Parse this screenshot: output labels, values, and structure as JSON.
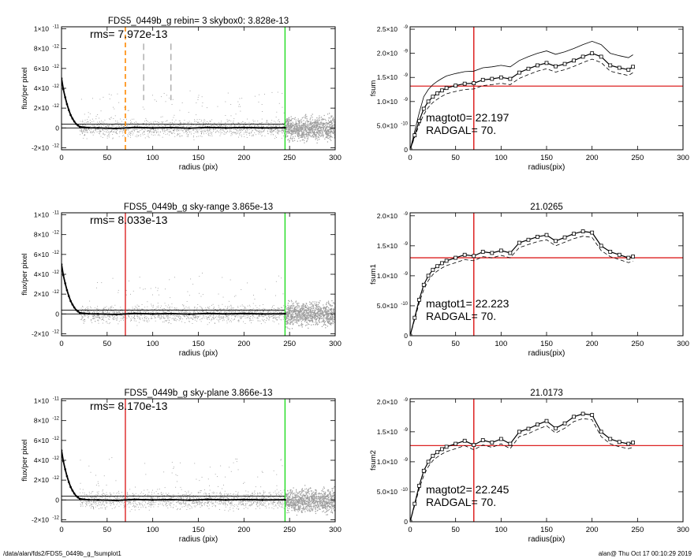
{
  "footer": {
    "path": "/data/alan/fds2/FDS5_0449b_g_fsumplot1",
    "stamp": "alan@  Thu Oct 17 00:10:29 2019"
  },
  "colors": {
    "ref_red": "#dd2222",
    "ref_green": "#22dd22",
    "ref_orange": "#ff8800",
    "noise_gray": "#9a9a9a"
  },
  "chart_data": [
    {
      "type": "scatter",
      "title": "FDS5_0449b_g rebin= 3    skybox0:  3.828e-13",
      "annotation": "rms= 7.972e-13",
      "xlabel": "radius (pix)",
      "ylabel": "flux/per pixel",
      "xlim": [
        0,
        300
      ],
      "ylim": [
        -2.2e-12,
        1.02e-11
      ],
      "xticks": [
        0,
        50,
        100,
        150,
        200,
        250,
        300
      ],
      "yticks": [
        -2e-12,
        0,
        2e-12,
        4e-12,
        6e-12,
        8e-12,
        1e-11
      ],
      "ytick_labels": [
        [
          "-2×10",
          "-12"
        ],
        [
          "0",
          ""
        ],
        [
          "2×10",
          "-12"
        ],
        [
          "4×10",
          "-12"
        ],
        [
          "6×10",
          "-12"
        ],
        [
          "8×10",
          "-12"
        ],
        [
          "1×10",
          "-11"
        ]
      ],
      "profile_x": [
        0,
        2,
        4,
        6,
        8,
        10,
        12,
        14,
        16,
        18,
        20,
        25,
        30,
        40,
        60,
        80,
        100,
        120,
        140,
        160,
        180,
        200,
        220,
        245
      ],
      "profile_y": [
        5e-12,
        3.9e-12,
        3.1e-12,
        2.4e-12,
        1.8e-12,
        1.3e-12,
        9.5e-13,
        6.5e-13,
        4e-13,
        2.5e-13,
        1.2e-13,
        5e-14,
        2e-14,
        0.0,
        -5e-14,
        5e-14,
        0.0,
        3e-14,
        -2e-14,
        5e-14,
        0.0,
        4e-14,
        0.0,
        2e-14
      ],
      "hlines": [
        3.8e-13,
        0
      ],
      "vlines": [
        {
          "x": 70,
          "color": "#ff8800",
          "dash": "6,4"
        },
        {
          "x": 245,
          "color": "#22dd22",
          "dash": ""
        },
        {
          "x": 90,
          "color": "#888888",
          "dash": "8,5"
        },
        {
          "x": 120,
          "color": "#888888",
          "dash": "8,5"
        }
      ],
      "seed": 11
    },
    {
      "type": "line",
      "title": "",
      "annotation_lines": [
        "magtot0=  22.197",
        " RADGAL=     70."
      ],
      "xlabel": "radius(pix)",
      "ylabel": "fsum",
      "xlim": [
        0,
        300
      ],
      "ylim": [
        0,
        2.55e-09
      ],
      "xticks": [
        0,
        50,
        100,
        150,
        200,
        250,
        300
      ],
      "yticks": [
        0,
        5e-10,
        1e-09,
        1.5e-09,
        2e-09,
        2.5e-09
      ],
      "ytick_labels": [
        [
          "0",
          ""
        ],
        [
          "5.0×10",
          "-10"
        ],
        [
          "1.0×10",
          "-9"
        ],
        [
          "1.5×10",
          "-9"
        ],
        [
          "2.0×10",
          "-9"
        ],
        [
          "2.5×10",
          "-9"
        ]
      ],
      "x": [
        0,
        5,
        10,
        15,
        20,
        25,
        30,
        35,
        40,
        50,
        60,
        70,
        80,
        90,
        100,
        110,
        120,
        130,
        140,
        150,
        160,
        170,
        180,
        190,
        200,
        210,
        220,
        230,
        240,
        245
      ],
      "y": [
        0,
        3e-10,
        6e-10,
        8.5e-10,
        1e-09,
        1.1e-09,
        1.17e-09,
        1.23e-09,
        1.28e-09,
        1.33e-09,
        1.37e-09,
        1.38e-09,
        1.45e-09,
        1.47e-09,
        1.5e-09,
        1.47e-09,
        1.6e-09,
        1.68e-09,
        1.75e-09,
        1.8e-09,
        1.73e-09,
        1.78e-09,
        1.85e-09,
        1.93e-09,
        2e-09,
        1.93e-09,
        1.75e-09,
        1.7e-09,
        1.66e-09,
        1.72e-09
      ],
      "upper_offset": 2.5e-10,
      "lower_offset": 1.2e-10,
      "hline": 1.32e-09,
      "vline": 70
    },
    {
      "type": "scatter",
      "title": "FDS5_0449b_g sky-range  3.865e-13",
      "annotation": "rms= 8.033e-13",
      "xlabel": "radius (pix)",
      "ylabel": "flux/per pixel",
      "xlim": [
        0,
        300
      ],
      "ylim": [
        -2.2e-12,
        1.02e-11
      ],
      "xticks": [
        0,
        50,
        100,
        150,
        200,
        250,
        300
      ],
      "yticks": [
        -2e-12,
        0,
        2e-12,
        4e-12,
        6e-12,
        8e-12,
        1e-11
      ],
      "ytick_labels": [
        [
          "-2×10",
          "-12"
        ],
        [
          "0",
          ""
        ],
        [
          "2×10",
          "-12"
        ],
        [
          "4×10",
          "-12"
        ],
        [
          "6×10",
          "-12"
        ],
        [
          "8×10",
          "-12"
        ],
        [
          "1×10",
          "-11"
        ]
      ],
      "profile_x": [
        0,
        2,
        4,
        6,
        8,
        10,
        12,
        14,
        16,
        18,
        20,
        25,
        30,
        40,
        60,
        80,
        100,
        120,
        140,
        160,
        180,
        200,
        220,
        245
      ],
      "profile_y": [
        5e-12,
        3.9e-12,
        3.1e-12,
        2.4e-12,
        1.8e-12,
        1.3e-12,
        9.5e-13,
        6.5e-13,
        4e-13,
        2.5e-13,
        1.2e-13,
        5e-14,
        2e-14,
        0.0,
        -5e-14,
        5e-14,
        0.0,
        3e-14,
        -2e-14,
        5e-14,
        0.0,
        4e-14,
        0.0,
        2e-14
      ],
      "hlines": [
        3.9e-13,
        0
      ],
      "vlines": [
        {
          "x": 70,
          "color": "#dd2222",
          "dash": ""
        },
        {
          "x": 245,
          "color": "#22dd22",
          "dash": ""
        }
      ],
      "seed": 23
    },
    {
      "type": "line",
      "title": "21.0265",
      "annotation_lines": [
        "magtot1=  22.223",
        " RADGAL=     70."
      ],
      "xlabel": "radius(pix)",
      "ylabel": "fsum1",
      "xlim": [
        0,
        300
      ],
      "ylim": [
        0,
        2.05e-09
      ],
      "xticks": [
        0,
        50,
        100,
        150,
        200,
        250,
        300
      ],
      "yticks": [
        0,
        5e-10,
        1e-09,
        1.5e-09,
        2e-09
      ],
      "ytick_labels": [
        [
          "0",
          ""
        ],
        [
          "5.0×10",
          "-10"
        ],
        [
          "1.0×10",
          "-9"
        ],
        [
          "1.5×10",
          "-9"
        ],
        [
          "2.0×10",
          "-9"
        ]
      ],
      "x": [
        0,
        5,
        10,
        15,
        20,
        25,
        30,
        35,
        40,
        50,
        60,
        70,
        80,
        90,
        100,
        110,
        120,
        130,
        140,
        150,
        160,
        170,
        180,
        190,
        200,
        210,
        220,
        230,
        240,
        245
      ],
      "y": [
        0,
        3e-10,
        6e-10,
        8.5e-10,
        1e-09,
        1.1e-09,
        1.16e-09,
        1.21e-09,
        1.25e-09,
        1.3e-09,
        1.35e-09,
        1.33e-09,
        1.4e-09,
        1.38e-09,
        1.42e-09,
        1.38e-09,
        1.55e-09,
        1.6e-09,
        1.65e-09,
        1.68e-09,
        1.58e-09,
        1.64e-09,
        1.7e-09,
        1.74e-09,
        1.72e-09,
        1.5e-09,
        1.4e-09,
        1.35e-09,
        1.3e-09,
        1.32e-09
      ],
      "upper_offset": 0,
      "lower_offset": 8e-11,
      "hline": 1.3e-09,
      "vline": 70
    },
    {
      "type": "scatter",
      "title": "FDS5_0449b_g sky-plane  3.866e-13",
      "annotation": "rms= 8.170e-13",
      "xlabel": "radius (pix)",
      "ylabel": "flux/per pixel",
      "xlim": [
        0,
        300
      ],
      "ylim": [
        -2.2e-12,
        1.02e-11
      ],
      "xticks": [
        0,
        50,
        100,
        150,
        200,
        250,
        300
      ],
      "yticks": [
        -2e-12,
        0,
        2e-12,
        4e-12,
        6e-12,
        8e-12,
        1e-11
      ],
      "ytick_labels": [
        [
          "-2×10",
          "-12"
        ],
        [
          "0",
          ""
        ],
        [
          "2×10",
          "-12"
        ],
        [
          "4×10",
          "-12"
        ],
        [
          "6×10",
          "-12"
        ],
        [
          "8×10",
          "-12"
        ],
        [
          "1×10",
          "-11"
        ]
      ],
      "profile_x": [
        0,
        2,
        4,
        6,
        8,
        10,
        12,
        14,
        16,
        18,
        20,
        25,
        30,
        40,
        60,
        80,
        100,
        120,
        140,
        160,
        180,
        200,
        220,
        245
      ],
      "profile_y": [
        5e-12,
        3.9e-12,
        3.1e-12,
        2.4e-12,
        1.8e-12,
        1.3e-12,
        9.5e-13,
        6.5e-13,
        4e-13,
        2.5e-13,
        1.2e-13,
        5e-14,
        2e-14,
        0.0,
        -5e-14,
        5e-14,
        0.0,
        3e-14,
        -2e-14,
        5e-14,
        0.0,
        4e-14,
        0.0,
        2e-14
      ],
      "hlines": [
        3.9e-13,
        0
      ],
      "vlines": [
        {
          "x": 70,
          "color": "#dd2222",
          "dash": ""
        },
        {
          "x": 245,
          "color": "#22dd22",
          "dash": ""
        }
      ],
      "seed": 37
    },
    {
      "type": "line",
      "title": "21.0173",
      "annotation_lines": [
        "magtot2=  22.245",
        " RADGAL=     70."
      ],
      "xlabel": "radius(pix)",
      "ylabel": "fsum2",
      "xlim": [
        0,
        300
      ],
      "ylim": [
        0,
        2.05e-09
      ],
      "xticks": [
        0,
        50,
        100,
        150,
        200,
        250,
        300
      ],
      "yticks": [
        0,
        5e-10,
        1e-09,
        1.5e-09,
        2e-09
      ],
      "ytick_labels": [
        [
          "0",
          ""
        ],
        [
          "5.0×10",
          "-10"
        ],
        [
          "1.0×10",
          "-9"
        ],
        [
          "1.5×10",
          "-9"
        ],
        [
          "2.0×10",
          "-9"
        ]
      ],
      "x": [
        0,
        5,
        10,
        15,
        20,
        25,
        30,
        35,
        40,
        50,
        60,
        70,
        80,
        90,
        100,
        110,
        120,
        130,
        140,
        150,
        160,
        170,
        180,
        190,
        200,
        210,
        220,
        230,
        240,
        245
      ],
      "y": [
        0,
        3e-10,
        6e-10,
        8.5e-10,
        1e-09,
        1.1e-09,
        1.16e-09,
        1.21e-09,
        1.25e-09,
        1.3e-09,
        1.35e-09,
        1.28e-09,
        1.36e-09,
        1.32e-09,
        1.38e-09,
        1.3e-09,
        1.5e-09,
        1.55e-09,
        1.62e-09,
        1.68e-09,
        1.56e-09,
        1.64e-09,
        1.75e-09,
        1.8e-09,
        1.78e-09,
        1.5e-09,
        1.38e-09,
        1.33e-09,
        1.3e-09,
        1.32e-09
      ],
      "upper_offset": 0,
      "lower_offset": 8e-11,
      "hline": 1.27e-09,
      "vline": 70
    }
  ]
}
